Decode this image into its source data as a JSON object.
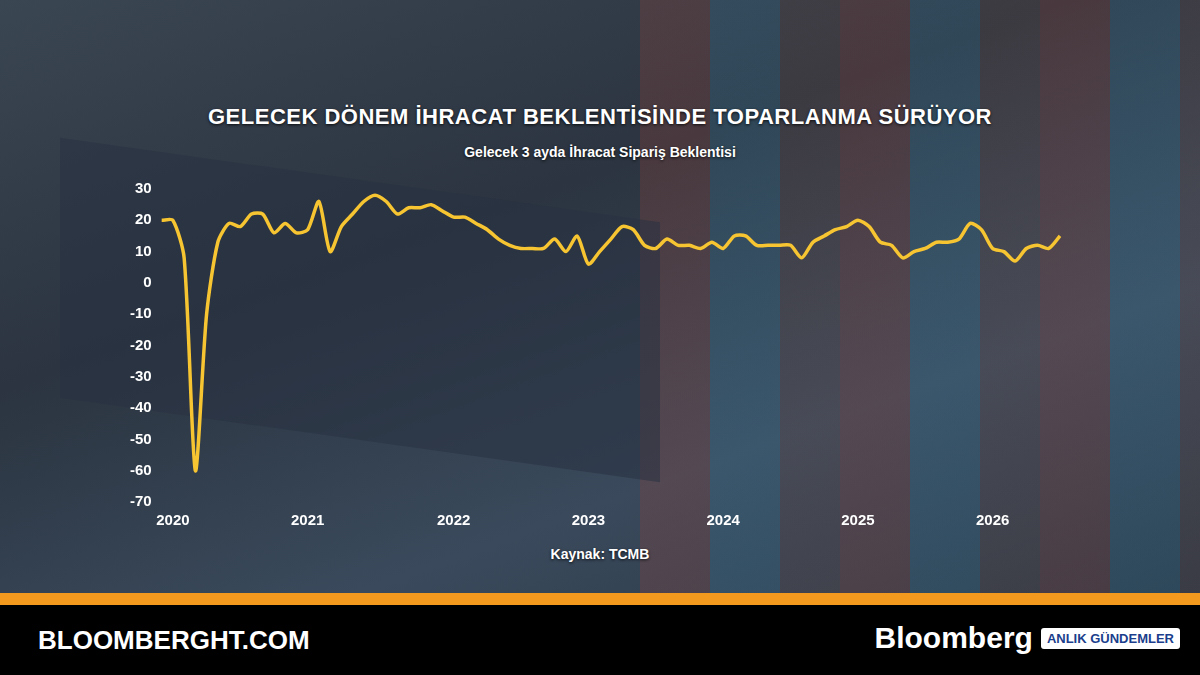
{
  "chart_data": {
    "type": "line",
    "title": "GELECEK DÖNEM İHRACAT BEKLENTİSİNDE TOPARLANMA SÜRÜYOR",
    "subtitle": "Gelecek 3 ayda İhracat Sipariş Beklentisi",
    "source": "Kaynak: TCMB",
    "categories": [
      null,
      "2020",
      null,
      null,
      null,
      null,
      null,
      null,
      null,
      null,
      null,
      null,
      null,
      "2021",
      null,
      null,
      null,
      null,
      null,
      null,
      null,
      null,
      null,
      null,
      null,
      null,
      "2022",
      null,
      null,
      null,
      null,
      null,
      null,
      null,
      null,
      null,
      null,
      null,
      "2023",
      null,
      null,
      null,
      null,
      null,
      null,
      null,
      null,
      null,
      null,
      null,
      "2024",
      null,
      null,
      null,
      null,
      null,
      null,
      null,
      null,
      null,
      null,
      null,
      "2025",
      null,
      null,
      null,
      null,
      null,
      null,
      null,
      null,
      null,
      null,
      null,
      "2026",
      null,
      null,
      null,
      null,
      null,
      null
    ],
    "values": [
      20,
      20,
      8,
      -60,
      -10,
      13,
      19,
      18,
      22,
      22,
      16,
      19,
      16,
      17,
      26,
      10,
      18,
      22,
      26,
      28,
      26,
      22,
      24,
      24,
      25,
      23,
      21,
      21,
      19,
      17,
      14,
      12,
      11,
      11,
      11,
      14,
      10,
      15,
      6,
      10,
      14,
      18,
      17,
      12,
      11,
      14,
      12,
      12,
      11,
      13,
      11,
      15,
      15,
      12,
      12,
      12,
      12,
      8,
      13,
      15,
      17,
      18,
      20,
      18,
      13,
      12,
      8,
      10,
      11,
      13,
      13,
      14,
      19,
      17,
      11,
      10,
      7,
      11,
      12,
      11,
      15
    ],
    "color": "#f7c531",
    "ylim": [
      -70,
      30
    ],
    "yticks": [
      -70,
      -60,
      -50,
      -40,
      -30,
      -20,
      -10,
      0,
      10,
      20,
      30
    ],
    "grid": false
  },
  "footer": {
    "site": "BLOOMBERGHT.COM",
    "brand": "Bloomberg",
    "badge": "ANLIK GÜNDEMLER"
  }
}
